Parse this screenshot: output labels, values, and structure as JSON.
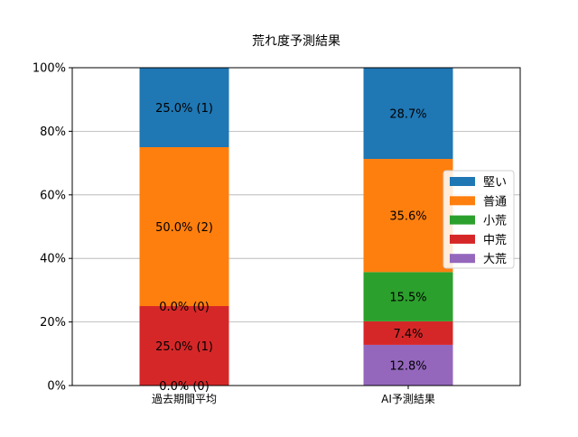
{
  "chart_data": {
    "type": "bar",
    "stacked": true,
    "title": "荒れ度予測結果",
    "xlabel": "",
    "ylabel": "",
    "ylim": [
      0,
      100
    ],
    "yticks": [
      0,
      20,
      40,
      60,
      80,
      100
    ],
    "ytick_labels": [
      "0%",
      "20%",
      "40%",
      "60%",
      "80%",
      "100%"
    ],
    "grid": "y",
    "legend_position": "center-right",
    "categories": [
      "過去期間平均",
      "AI予測結果"
    ],
    "series": [
      {
        "name": "大荒",
        "color": "#9467bd",
        "values": [
          0.0,
          12.8
        ],
        "labels": [
          "0.0% (0)",
          "12.8%"
        ]
      },
      {
        "name": "中荒",
        "color": "#d62728",
        "values": [
          25.0,
          7.4
        ],
        "labels": [
          "25.0% (1)",
          "7.4%"
        ]
      },
      {
        "name": "小荒",
        "color": "#2ca02c",
        "values": [
          0.0,
          15.5
        ],
        "labels": [
          "0.0% (0)",
          "15.5%"
        ]
      },
      {
        "name": "普通",
        "color": "#ff7f0e",
        "values": [
          50.0,
          35.6
        ],
        "labels": [
          "50.0% (2)",
          "35.6%"
        ]
      },
      {
        "name": "堅い",
        "color": "#1f77b4",
        "values": [
          25.0,
          28.7
        ],
        "labels": [
          "25.0% (1)",
          "28.7%"
        ]
      }
    ]
  }
}
